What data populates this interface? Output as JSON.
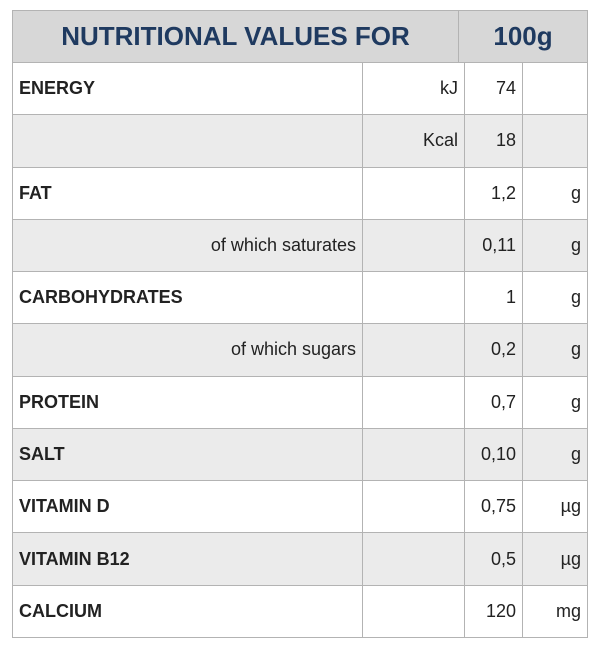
{
  "header": {
    "title": "NUTRITIONAL VALUES FOR",
    "amount": "100g"
  },
  "table": {
    "rows": [
      {
        "label": "ENERGY",
        "unit_label": "kJ",
        "value": "74"
      },
      {
        "unit_label": "Kcal",
        "value": "18"
      },
      {
        "label": "FAT",
        "value": "1,2",
        "unit": "g"
      },
      {
        "sublabel": "of which saturates",
        "value": "0,11",
        "unit": "g"
      },
      {
        "label": "CARBOHYDRATES",
        "value": "1",
        "unit": "g"
      },
      {
        "sublabel": "of which sugars",
        "value": "0,2",
        "unit": "g"
      },
      {
        "label": "PROTEIN",
        "value": "0,7",
        "unit": "g"
      },
      {
        "label": "SALT",
        "value": "0,10",
        "unit": "g"
      },
      {
        "label": "VITAMIN D",
        "value": "0,75",
        "unit": "µg"
      },
      {
        "label": "VITAMIN B12",
        "value": "0,5",
        "unit": "µg"
      },
      {
        "label": "CALCIUM",
        "value": "120",
        "unit": "mg"
      }
    ]
  }
}
